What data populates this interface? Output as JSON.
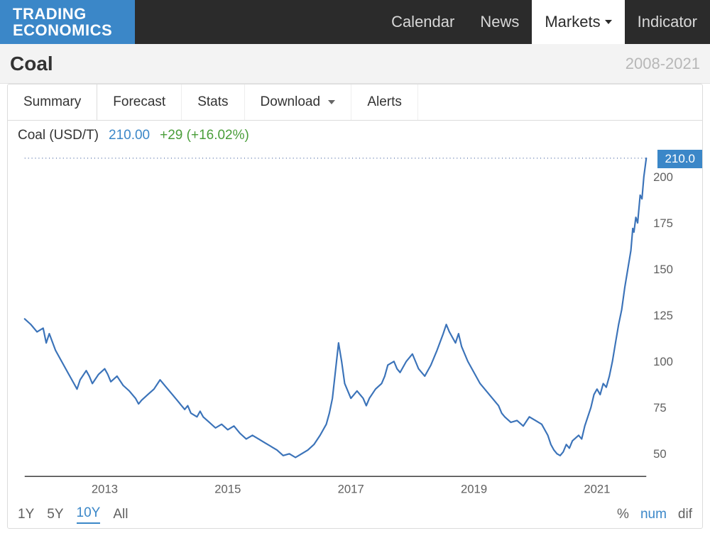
{
  "brand": {
    "line1": "TRADING",
    "line2": "ECONOMICS",
    "bg": "#3b87c8"
  },
  "nav": {
    "bg": "#2b2b2b",
    "items": [
      {
        "label": "Calendar",
        "active": false
      },
      {
        "label": "News",
        "active": false
      },
      {
        "label": "Markets",
        "active": true,
        "dropdown": true
      },
      {
        "label": "Indicator",
        "active": false
      }
    ]
  },
  "titlebar": {
    "title": "Coal",
    "date_range": "2008-2021",
    "bg": "#f3f3f3"
  },
  "tabs": [
    {
      "label": "Summary",
      "active": true
    },
    {
      "label": "Forecast",
      "active": false
    },
    {
      "label": "Stats",
      "active": false
    },
    {
      "label": "Download",
      "active": false,
      "dropdown": true
    },
    {
      "label": "Alerts",
      "active": false
    }
  ],
  "quote": {
    "name": "Coal (USD/T)",
    "price": "210.00",
    "change": "+29 (+16.02%)",
    "price_color": "#3b87c8",
    "change_color": "#4a9e3a"
  },
  "range_buttons": [
    "1Y",
    "5Y",
    "10Y",
    "All"
  ],
  "range_active": "10Y",
  "mode_buttons": [
    "%",
    "num",
    "dif"
  ],
  "mode_active": "num",
  "chart": {
    "type": "line",
    "line_color": "#3b73b9",
    "line_width": 2.2,
    "background_color": "#ffffff",
    "axis_color": "#2b2b2b",
    "marker_line_color": "#1a3f8a",
    "marker_dash": "1 4",
    "current_badge": "210.0",
    "x_axis": {
      "min": 2011.7,
      "max": 2021.8,
      "ticks": [
        2013,
        2015,
        2017,
        2019,
        2021
      ]
    },
    "y_axis": {
      "min": 40,
      "max": 215,
      "ticks": [
        50,
        75,
        100,
        125,
        150,
        175,
        200
      ]
    },
    "series": [
      [
        2011.7,
        123
      ],
      [
        2011.8,
        120
      ],
      [
        2011.9,
        116
      ],
      [
        2012.0,
        118
      ],
      [
        2012.05,
        110
      ],
      [
        2012.1,
        115
      ],
      [
        2012.2,
        106
      ],
      [
        2012.3,
        100
      ],
      [
        2012.4,
        94
      ],
      [
        2012.5,
        88
      ],
      [
        2012.55,
        85
      ],
      [
        2012.6,
        90
      ],
      [
        2012.7,
        95
      ],
      [
        2012.75,
        92
      ],
      [
        2012.8,
        88
      ],
      [
        2012.9,
        93
      ],
      [
        2013.0,
        96
      ],
      [
        2013.05,
        93
      ],
      [
        2013.1,
        89
      ],
      [
        2013.2,
        92
      ],
      [
        2013.3,
        87
      ],
      [
        2013.4,
        84
      ],
      [
        2013.5,
        80
      ],
      [
        2013.55,
        77
      ],
      [
        2013.6,
        79
      ],
      [
        2013.7,
        82
      ],
      [
        2013.8,
        85
      ],
      [
        2013.9,
        90
      ],
      [
        2014.0,
        86
      ],
      [
        2014.1,
        82
      ],
      [
        2014.2,
        78
      ],
      [
        2014.3,
        74
      ],
      [
        2014.35,
        76
      ],
      [
        2014.4,
        72
      ],
      [
        2014.5,
        70
      ],
      [
        2014.55,
        73
      ],
      [
        2014.6,
        70
      ],
      [
        2014.7,
        67
      ],
      [
        2014.8,
        64
      ],
      [
        2014.9,
        66
      ],
      [
        2015.0,
        63
      ],
      [
        2015.1,
        65
      ],
      [
        2015.2,
        61
      ],
      [
        2015.3,
        58
      ],
      [
        2015.4,
        60
      ],
      [
        2015.5,
        58
      ],
      [
        2015.6,
        56
      ],
      [
        2015.7,
        54
      ],
      [
        2015.8,
        52
      ],
      [
        2015.9,
        49
      ],
      [
        2016.0,
        50
      ],
      [
        2016.1,
        48
      ],
      [
        2016.2,
        50
      ],
      [
        2016.3,
        52
      ],
      [
        2016.4,
        55
      ],
      [
        2016.5,
        60
      ],
      [
        2016.6,
        66
      ],
      [
        2016.65,
        72
      ],
      [
        2016.7,
        80
      ],
      [
        2016.75,
        95
      ],
      [
        2016.8,
        110
      ],
      [
        2016.85,
        100
      ],
      [
        2016.9,
        88
      ],
      [
        2017.0,
        80
      ],
      [
        2017.1,
        84
      ],
      [
        2017.2,
        80
      ],
      [
        2017.25,
        76
      ],
      [
        2017.3,
        80
      ],
      [
        2017.4,
        85
      ],
      [
        2017.5,
        88
      ],
      [
        2017.55,
        92
      ],
      [
        2017.6,
        98
      ],
      [
        2017.7,
        100
      ],
      [
        2017.75,
        96
      ],
      [
        2017.8,
        94
      ],
      [
        2017.9,
        100
      ],
      [
        2018.0,
        104
      ],
      [
        2018.05,
        100
      ],
      [
        2018.1,
        96
      ],
      [
        2018.2,
        92
      ],
      [
        2018.3,
        98
      ],
      [
        2018.4,
        106
      ],
      [
        2018.5,
        115
      ],
      [
        2018.55,
        120
      ],
      [
        2018.6,
        116
      ],
      [
        2018.7,
        110
      ],
      [
        2018.75,
        115
      ],
      [
        2018.8,
        108
      ],
      [
        2018.9,
        100
      ],
      [
        2019.0,
        94
      ],
      [
        2019.1,
        88
      ],
      [
        2019.2,
        84
      ],
      [
        2019.3,
        80
      ],
      [
        2019.4,
        76
      ],
      [
        2019.45,
        72
      ],
      [
        2019.5,
        70
      ],
      [
        2019.6,
        67
      ],
      [
        2019.7,
        68
      ],
      [
        2019.8,
        65
      ],
      [
        2019.9,
        70
      ],
      [
        2020.0,
        68
      ],
      [
        2020.1,
        66
      ],
      [
        2020.2,
        60
      ],
      [
        2020.25,
        55
      ],
      [
        2020.3,
        52
      ],
      [
        2020.35,
        50
      ],
      [
        2020.4,
        49
      ],
      [
        2020.45,
        51
      ],
      [
        2020.5,
        55
      ],
      [
        2020.55,
        53
      ],
      [
        2020.6,
        57
      ],
      [
        2020.7,
        60
      ],
      [
        2020.75,
        58
      ],
      [
        2020.8,
        65
      ],
      [
        2020.9,
        75
      ],
      [
        2020.95,
        82
      ],
      [
        2021.0,
        85
      ],
      [
        2021.05,
        82
      ],
      [
        2021.1,
        88
      ],
      [
        2021.15,
        86
      ],
      [
        2021.2,
        92
      ],
      [
        2021.25,
        100
      ],
      [
        2021.3,
        110
      ],
      [
        2021.35,
        120
      ],
      [
        2021.4,
        128
      ],
      [
        2021.45,
        140
      ],
      [
        2021.5,
        150
      ],
      [
        2021.55,
        160
      ],
      [
        2021.58,
        172
      ],
      [
        2021.6,
        170
      ],
      [
        2021.63,
        178
      ],
      [
        2021.66,
        175
      ],
      [
        2021.7,
        190
      ],
      [
        2021.73,
        188
      ],
      [
        2021.76,
        200
      ],
      [
        2021.8,
        210
      ]
    ]
  }
}
